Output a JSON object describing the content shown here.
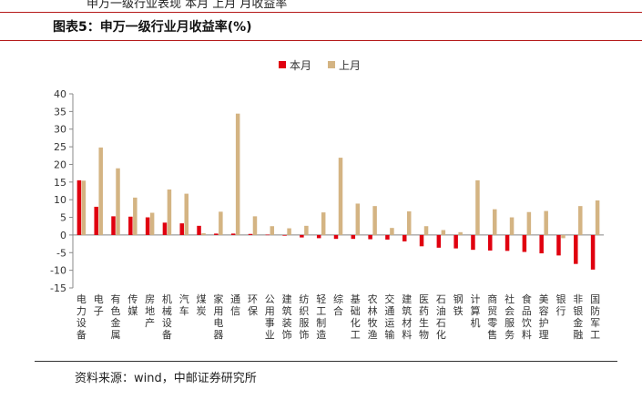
{
  "header": {
    "title": "图表5：申万一级行业月收益率(%)"
  },
  "footer": {
    "source": "资料来源：wind，中邮证券研究所"
  },
  "colors": {
    "current": "#e0000f",
    "previous": "#d4b483",
    "accent": "#b51a1a"
  },
  "chart_data": {
    "type": "bar",
    "title": "",
    "xlabel": "",
    "ylabel": "",
    "ylim": [
      -15,
      40
    ],
    "yticks": [
      40,
      35,
      30,
      25,
      20,
      15,
      10,
      5,
      0,
      -5,
      -10,
      -15
    ],
    "legend_position": "top-center",
    "grid": false,
    "categories": [
      "电力设备",
      "电子",
      "有色金属",
      "传媒",
      "房地产",
      "机械设备",
      "汽车",
      "煤炭",
      "家用电器",
      "通信",
      "环保",
      "公用事业",
      "建筑装饰",
      "纺织服饰",
      "轻工制造",
      "综合",
      "基础化工",
      "农林牧渔",
      "交通运输",
      "建筑材料",
      "医药生物",
      "石油石化",
      "钢铁",
      "计算机",
      "商贸零售",
      "社会服务",
      "食品饮料",
      "美容护理",
      "银行",
      "非银金融",
      "国防军工"
    ],
    "series": [
      {
        "name": "本月",
        "color": "#e0000f",
        "values": [
          15.5,
          8.0,
          5.3,
          5.2,
          5.0,
          3.5,
          3.3,
          2.6,
          0.4,
          0.4,
          0.3,
          0.1,
          -0.2,
          -0.7,
          -0.9,
          -1.1,
          -1.1,
          -1.2,
          -1.3,
          -1.8,
          -3.2,
          -3.6,
          -3.8,
          -4.2,
          -4.4,
          -4.5,
          -4.8,
          -5.2,
          -5.8,
          -8.2,
          -9.8
        ]
      },
      {
        "name": "上月",
        "color": "#d4b483",
        "values": [
          15.4,
          24.8,
          18.9,
          10.6,
          6.3,
          12.9,
          11.7,
          0.5,
          6.6,
          34.4,
          5.3,
          2.5,
          1.9,
          2.6,
          6.4,
          21.9,
          8.9,
          8.2,
          2.0,
          6.7,
          2.5,
          1.4,
          0.8,
          15.5,
          7.3,
          5.0,
          6.5,
          6.8,
          -0.9,
          8.2,
          9.8
        ]
      }
    ]
  }
}
